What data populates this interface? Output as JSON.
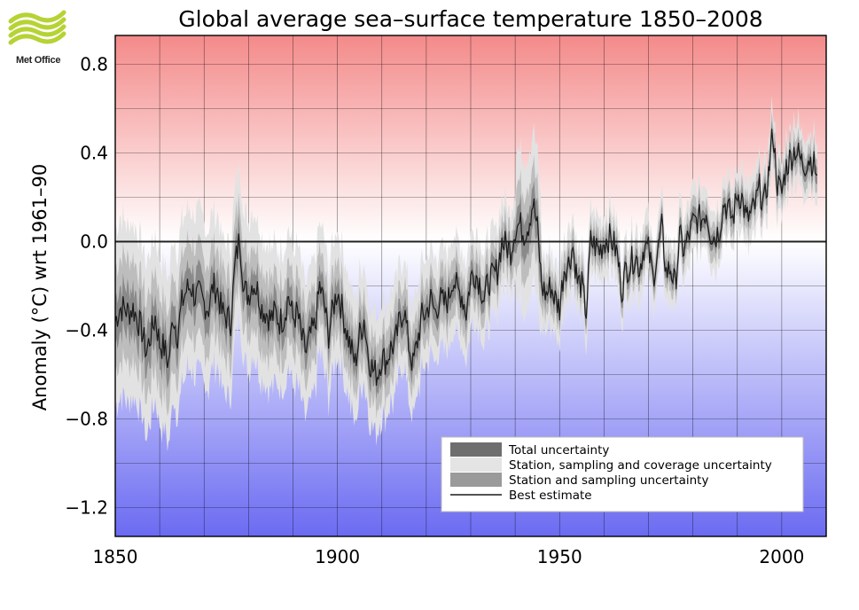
{
  "logo": {
    "text": "Met Office",
    "color": "#b5d334"
  },
  "chart_data": {
    "type": "area",
    "title": "Global average sea–surface temperature 1850–2008",
    "xlabel": "",
    "ylabel": "Anomaly (°C) wrt 1961–90",
    "xlim": [
      1850,
      2010
    ],
    "ylim": [
      -1.33,
      0.93
    ],
    "xticks": [
      1850,
      1900,
      1950,
      2000
    ],
    "xtick_labels": [
      "1850",
      "1900",
      "1950",
      "2000"
    ],
    "yticks": [
      0.8,
      0.4,
      0.0,
      -0.4,
      -0.8,
      -1.2
    ],
    "ytick_labels": [
      "0.8",
      "0.4",
      "0.0",
      "−0.4",
      "−0.8",
      "−1.2"
    ],
    "grid_x_step": 10,
    "grid_y_step": 0.2,
    "zero_line": 0.0,
    "legend_position": "bottom-right",
    "colors": {
      "warm": "#f48a8a",
      "cool": "#6b6bf2",
      "total_uncertainty": "#e2e2e2",
      "station_sampling_coverage": "#bdbdbd",
      "station_sampling": "#8a8a8a",
      "best_estimate": "#1a1a1a",
      "grid": "#000000"
    },
    "legend": [
      {
        "label": "Total uncertainty",
        "swatch": "#6e6e6e"
      },
      {
        "label": "Station, sampling and coverage uncertainty",
        "swatch": "#e4e4e4"
      },
      {
        "label": "Station and sampling uncertainty",
        "swatch": "#9a9a9a"
      },
      {
        "label": "Best estimate",
        "swatch": "line"
      }
    ],
    "series": [
      {
        "name": "Best estimate (annual mean, approximate)",
        "x": [
          1850,
          1851,
          1852,
          1853,
          1854,
          1855,
          1856,
          1857,
          1858,
          1859,
          1860,
          1861,
          1862,
          1863,
          1864,
          1865,
          1866,
          1867,
          1868,
          1869,
          1870,
          1871,
          1872,
          1873,
          1874,
          1875,
          1876,
          1877,
          1878,
          1879,
          1880,
          1881,
          1882,
          1883,
          1884,
          1885,
          1886,
          1887,
          1888,
          1889,
          1890,
          1891,
          1892,
          1893,
          1894,
          1895,
          1896,
          1897,
          1898,
          1899,
          1900,
          1901,
          1902,
          1903,
          1904,
          1905,
          1906,
          1907,
          1908,
          1909,
          1910,
          1911,
          1912,
          1913,
          1914,
          1915,
          1916,
          1917,
          1918,
          1919,
          1920,
          1921,
          1922,
          1923,
          1924,
          1925,
          1926,
          1927,
          1928,
          1929,
          1930,
          1931,
          1932,
          1933,
          1934,
          1935,
          1936,
          1937,
          1938,
          1939,
          1940,
          1941,
          1942,
          1943,
          1944,
          1945,
          1946,
          1947,
          1948,
          1949,
          1950,
          1951,
          1952,
          1953,
          1954,
          1955,
          1956,
          1957,
          1958,
          1959,
          1960,
          1961,
          1962,
          1963,
          1964,
          1965,
          1966,
          1967,
          1968,
          1969,
          1970,
          1971,
          1972,
          1973,
          1974,
          1975,
          1976,
          1977,
          1978,
          1979,
          1980,
          1981,
          1982,
          1983,
          1984,
          1985,
          1986,
          1987,
          1988,
          1989,
          1990,
          1991,
          1992,
          1993,
          1994,
          1995,
          1996,
          1997,
          1998,
          1999,
          2000,
          2001,
          2002,
          2003,
          2004,
          2005,
          2006,
          2007,
          2008
        ],
        "values": [
          -0.36,
          -0.3,
          -0.3,
          -0.32,
          -0.3,
          -0.35,
          -0.4,
          -0.5,
          -0.42,
          -0.34,
          -0.46,
          -0.48,
          -0.55,
          -0.33,
          -0.42,
          -0.28,
          -0.22,
          -0.2,
          -0.25,
          -0.24,
          -0.28,
          -0.3,
          -0.2,
          -0.22,
          -0.32,
          -0.34,
          -0.36,
          -0.1,
          0.02,
          -0.22,
          -0.24,
          -0.18,
          -0.22,
          -0.3,
          -0.32,
          -0.35,
          -0.32,
          -0.36,
          -0.34,
          -0.24,
          -0.35,
          -0.32,
          -0.44,
          -0.5,
          -0.42,
          -0.38,
          -0.2,
          -0.28,
          -0.42,
          -0.3,
          -0.22,
          -0.3,
          -0.4,
          -0.48,
          -0.55,
          -0.42,
          -0.35,
          -0.52,
          -0.58,
          -0.6,
          -0.52,
          -0.54,
          -0.48,
          -0.46,
          -0.36,
          -0.3,
          -0.46,
          -0.56,
          -0.45,
          -0.34,
          -0.32,
          -0.26,
          -0.32,
          -0.26,
          -0.28,
          -0.26,
          -0.16,
          -0.22,
          -0.24,
          -0.32,
          -0.16,
          -0.14,
          -0.18,
          -0.26,
          -0.18,
          -0.16,
          -0.13,
          0.0,
          -0.02,
          -0.04,
          0.06,
          0.08,
          0.04,
          0.08,
          0.18,
          0.06,
          -0.2,
          -0.24,
          -0.2,
          -0.26,
          -0.3,
          -0.12,
          -0.1,
          -0.02,
          -0.18,
          -0.2,
          -0.32,
          0.0,
          -0.02,
          -0.04,
          0.0,
          0.02,
          0.0,
          -0.06,
          -0.22,
          -0.12,
          -0.1,
          -0.06,
          -0.12,
          -0.02,
          -0.04,
          -0.16,
          -0.06,
          0.06,
          -0.14,
          -0.12,
          -0.2,
          0.02,
          -0.04,
          0.02,
          0.08,
          0.1,
          0.1,
          0.14,
          0.04,
          0.02,
          0.06,
          0.18,
          0.14,
          0.1,
          0.22,
          0.2,
          0.1,
          0.12,
          0.16,
          0.24,
          0.16,
          0.3,
          0.5,
          0.26,
          0.22,
          0.34,
          0.38,
          0.42,
          0.38,
          0.34,
          0.38,
          0.36,
          0.3
        ]
      }
    ]
  }
}
